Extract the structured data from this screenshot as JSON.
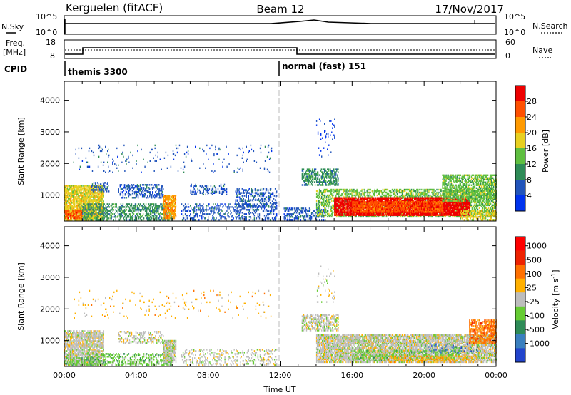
{
  "header": {
    "station": "Kerguelen (fitACF)",
    "beam": "Beam 12",
    "date": "17/Nov/2017"
  },
  "top_panels": {
    "nsky_label": "N.Sky",
    "nsky_ticks": [
      "10^5",
      "10^0"
    ],
    "nsearch_label": "N.Search",
    "nsearch_ticks": [
      "10^5",
      "10^0"
    ],
    "freq_label_1": "Freq.",
    "freq_label_2": "[MHz]",
    "freq_ticks": [
      "18",
      "8"
    ],
    "nave_label": "Nave",
    "nave_ticks": [
      "60",
      "0"
    ],
    "cpid_label": "CPID",
    "modes": [
      {
        "name": "themis 3300",
        "start_hour": 0
      },
      {
        "name": "normal (fast) 151",
        "start_hour": 12
      }
    ]
  },
  "chart_data": [
    {
      "type": "heatmap",
      "name": "power",
      "ylabel": "Slant Range [km]",
      "yticks": [
        1000,
        2000,
        3000,
        4000
      ],
      "ylim": [
        180,
        4600
      ],
      "xlim": [
        0,
        24
      ],
      "colorbar": {
        "label": "Power [dB]",
        "ticks": [
          "4",
          "8",
          "12",
          "16",
          "20",
          "24",
          "28"
        ],
        "colors": [
          "#0033ee",
          "#2255bb",
          "#2e8b57",
          "#5fbf40",
          "#e8d020",
          "#ff9a00",
          "#ff5000",
          "#ee0000"
        ]
      },
      "regions": [
        {
          "t0": 0.0,
          "t1": 2.2,
          "r0": 200,
          "r1": 1300,
          "lvl": 4,
          "d": 0.8
        },
        {
          "t0": 0.0,
          "t1": 1.0,
          "r0": 250,
          "r1": 500,
          "lvl": 6,
          "d": 0.6
        },
        {
          "t0": 1.5,
          "t1": 2.5,
          "r0": 1100,
          "r1": 1400,
          "lvl": 1,
          "d": 0.4
        },
        {
          "t0": 1.0,
          "t1": 6.0,
          "r0": 200,
          "r1": 700,
          "lvl": 2,
          "d": 0.45
        },
        {
          "t0": 3.0,
          "t1": 5.5,
          "r0": 900,
          "r1": 1350,
          "lvl": 1,
          "d": 0.4
        },
        {
          "t0": 5.5,
          "t1": 6.2,
          "r0": 250,
          "r1": 1000,
          "lvl": 5,
          "d": 0.75
        },
        {
          "t0": 6.5,
          "t1": 11.8,
          "r0": 200,
          "r1": 700,
          "lvl": 1,
          "d": 0.25
        },
        {
          "t0": 7.0,
          "t1": 9.0,
          "r0": 1000,
          "r1": 1350,
          "lvl": 1,
          "d": 0.3
        },
        {
          "t0": 9.5,
          "t1": 11.8,
          "r0": 600,
          "r1": 1200,
          "lvl": 1,
          "d": 0.35
        },
        {
          "t0": 12.2,
          "t1": 14.5,
          "r0": 200,
          "r1": 600,
          "lvl": 1,
          "d": 0.35
        },
        {
          "t0": 13.2,
          "t1": 15.2,
          "r0": 1300,
          "r1": 1800,
          "lvl": 2,
          "d": 0.5
        },
        {
          "t0": 14.0,
          "t1": 24.0,
          "r0": 300,
          "r1": 1200,
          "lvl": 3,
          "d": 0.5
        },
        {
          "t0": 15.0,
          "t1": 22.5,
          "r0": 350,
          "r1": 900,
          "lvl": 7,
          "d": 0.85
        },
        {
          "t0": 16.0,
          "t1": 21.0,
          "r0": 450,
          "r1": 800,
          "lvl": 6,
          "d": 0.7
        },
        {
          "t0": 21.0,
          "t1": 24.0,
          "r0": 800,
          "r1": 1650,
          "lvl": 3,
          "d": 0.6
        },
        {
          "t0": 22.0,
          "t1": 24.0,
          "r0": 200,
          "r1": 500,
          "lvl": 4,
          "d": 0.5
        },
        {
          "t0": 0.5,
          "t1": 11.5,
          "r0": 1700,
          "r1": 2600,
          "lvl": 1,
          "d": 0.04
        },
        {
          "t0": 14.0,
          "t1": 15.0,
          "r0": 2200,
          "r1": 3400,
          "lvl": 0,
          "d": 0.06
        }
      ]
    },
    {
      "type": "heatmap",
      "name": "velocity",
      "ylabel": "Slant Range [km]",
      "yticks": [
        1000,
        2000,
        3000,
        4000
      ],
      "ylim": [
        180,
        4600
      ],
      "xlim": [
        0,
        24
      ],
      "xticks": [
        "00:00",
        "04:00",
        "08:00",
        "12:00",
        "16:00",
        "20:00",
        "00:00"
      ],
      "xlabel": "Time UT",
      "colorbar": {
        "label": "Velocity [m s",
        "label_sup": "-1",
        "label_end": "]",
        "ticks": [
          "1000",
          "500",
          "100",
          "25",
          "-25",
          "-100",
          "-500",
          "-1000"
        ],
        "colors": [
          "#2244cc",
          "#3a7fbf",
          "#2e8b57",
          "#66cc33",
          "#bdbdbd",
          "#ffb000",
          "#ff7000",
          "#ee2200",
          "#ff0000"
        ]
      },
      "regions": [
        {
          "t0": 0.0,
          "t1": 2.2,
          "r0": 200,
          "r1": 1300,
          "lvl": 4,
          "d": 0.7
        },
        {
          "t0": 0.0,
          "t1": 2.0,
          "r0": 200,
          "r1": 450,
          "lvl": 3,
          "d": 0.4
        },
        {
          "t0": 1.0,
          "t1": 6.0,
          "r0": 200,
          "r1": 600,
          "lvl": 3,
          "d": 0.35
        },
        {
          "t0": 5.5,
          "t1": 6.2,
          "r0": 300,
          "r1": 1000,
          "lvl": 4,
          "d": 0.7
        },
        {
          "t0": 3.0,
          "t1": 5.5,
          "r0": 900,
          "r1": 1300,
          "lvl": 4,
          "d": 0.3
        },
        {
          "t0": 6.5,
          "t1": 11.8,
          "r0": 200,
          "r1": 700,
          "lvl": 4,
          "d": 0.2
        },
        {
          "t0": 13.2,
          "t1": 15.2,
          "r0": 1300,
          "r1": 1800,
          "lvl": 4,
          "d": 0.5
        },
        {
          "t0": 14.0,
          "t1": 24.0,
          "r0": 300,
          "r1": 1200,
          "lvl": 4,
          "d": 0.75
        },
        {
          "t0": 16.0,
          "t1": 22.0,
          "r0": 350,
          "r1": 700,
          "lvl": 3,
          "d": 0.3
        },
        {
          "t0": 18.0,
          "t1": 23.0,
          "r0": 300,
          "r1": 500,
          "lvl": 5,
          "d": 0.3
        },
        {
          "t0": 22.5,
          "t1": 24.0,
          "r0": 900,
          "r1": 1650,
          "lvl": 6,
          "d": 0.6
        },
        {
          "t0": 20.0,
          "t1": 23.0,
          "r0": 600,
          "r1": 900,
          "lvl": 1,
          "d": 0.12
        },
        {
          "t0": 0.5,
          "t1": 11.5,
          "r0": 1700,
          "r1": 2600,
          "lvl": 5,
          "d": 0.03
        },
        {
          "t0": 14.0,
          "t1": 15.0,
          "r0": 2200,
          "r1": 3400,
          "lvl": 4,
          "d": 0.06
        }
      ]
    }
  ]
}
